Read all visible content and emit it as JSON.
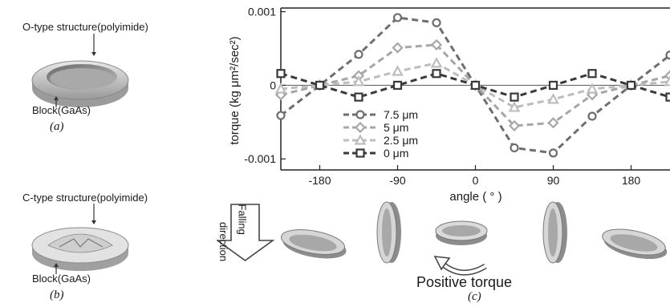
{
  "panel_a": {
    "top_label": "O-type structure(polyimide)",
    "bottom_label": "Block(GaAs)",
    "caption": "(a)"
  },
  "panel_b": {
    "top_label": "C-type structure(polyimide)",
    "bottom_label": "Block(GaAs)",
    "caption": "(b)"
  },
  "panel_c": {
    "caption": "(c)",
    "falling_line1": "Falling",
    "falling_line2": "direction",
    "positive_torque": "Positive torque"
  },
  "chart_data": {
    "type": "line",
    "xlabel": "angle ( ° )",
    "ylabel": "torque (kg μm²/sec²)",
    "x_ticks": [
      -180,
      -90,
      0,
      90,
      180
    ],
    "y_ticks": [
      "0.001",
      "0",
      "-0.001"
    ],
    "xlim": [
      -225,
      225
    ],
    "ylim": [
      -0.00115,
      0.00105
    ],
    "x": [
      -225,
      -180,
      -135,
      -90,
      -45,
      0,
      45,
      90,
      135,
      180,
      225
    ],
    "series": [
      {
        "name": "7.5 μm",
        "color": "#6e6e6e",
        "marker": "circle",
        "values": [
          -0.00041,
          0,
          0.00042,
          0.00092,
          0.00085,
          0,
          -0.00085,
          -0.00092,
          -0.00042,
          0,
          0.00041
        ]
      },
      {
        "name": "5 μm",
        "color": "#a6a6a6",
        "marker": "diamond",
        "values": [
          -0.00013,
          0,
          0.00013,
          0.00051,
          0.00055,
          0,
          -0.00055,
          -0.00051,
          -0.00013,
          0,
          0.00013
        ]
      },
      {
        "name": "2.5 μm",
        "color": "#bdbdbd",
        "marker": "triangle",
        "values": [
          -5e-05,
          0,
          5e-05,
          0.00019,
          0.0003,
          0,
          -0.0003,
          -0.00019,
          -5e-05,
          0,
          5e-05
        ]
      },
      {
        "name": "0 μm",
        "color": "#3a3a3a",
        "marker": "square",
        "values": [
          0.00016,
          0,
          -0.00016,
          0,
          0.00016,
          0,
          -0.00016,
          0,
          0.00016,
          0,
          -0.00016
        ]
      }
    ],
    "grid": false,
    "legend_position": "bottom-left"
  }
}
